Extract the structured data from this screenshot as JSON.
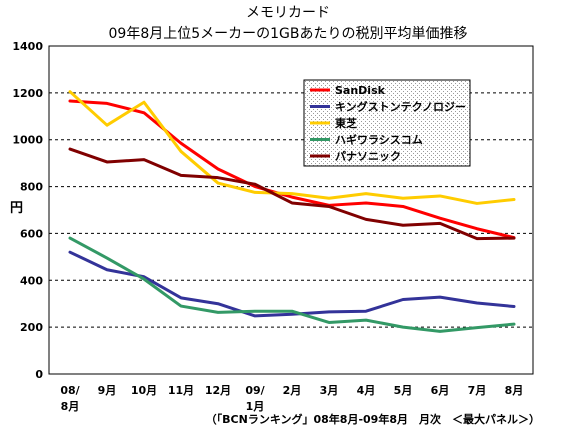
{
  "chart_data": {
    "type": "line",
    "title_line1": "メモリカード",
    "title_line2": "09年8月上位5メーカーの1GBあたりの税別平均単価推移",
    "ylabel": "円",
    "ylim": [
      0,
      1400
    ],
    "yticks": [
      0,
      200,
      400,
      600,
      800,
      1000,
      1200,
      1400
    ],
    "grid": "horizontal-dashed",
    "legend_position": "top-right",
    "categories": [
      {
        "top": "08/",
        "bottom": "8月"
      },
      {
        "top": "9月",
        "bottom": ""
      },
      {
        "top": "10月",
        "bottom": ""
      },
      {
        "top": "11月",
        "bottom": ""
      },
      {
        "top": "12月",
        "bottom": ""
      },
      {
        "top": "09/",
        "bottom": "1月"
      },
      {
        "top": "2月",
        "bottom": ""
      },
      {
        "top": "3月",
        "bottom": ""
      },
      {
        "top": "4月",
        "bottom": ""
      },
      {
        "top": "5月",
        "bottom": ""
      },
      {
        "top": "6月",
        "bottom": ""
      },
      {
        "top": "7月",
        "bottom": ""
      },
      {
        "top": "8月",
        "bottom": ""
      }
    ],
    "series": [
      {
        "name": "SanDisk",
        "color": "#ff0000",
        "values": [
          1165,
          1155,
          1115,
          985,
          875,
          800,
          755,
          720,
          730,
          715,
          665,
          620,
          582
        ]
      },
      {
        "name": "キングストンテクノロジー",
        "color": "#333399",
        "values": [
          520,
          445,
          415,
          325,
          300,
          248,
          255,
          265,
          268,
          318,
          328,
          303,
          288
        ]
      },
      {
        "name": "東芝",
        "color": "#ffcc00",
        "values": [
          1205,
          1062,
          1160,
          950,
          815,
          775,
          770,
          750,
          770,
          750,
          760,
          728,
          745
        ]
      },
      {
        "name": "ハギワラシスコム",
        "color": "#339966",
        "values": [
          580,
          495,
          405,
          290,
          263,
          268,
          268,
          220,
          230,
          200,
          182,
          198,
          213
        ]
      },
      {
        "name": "パナソニック",
        "color": "#800000",
        "values": [
          960,
          905,
          915,
          848,
          838,
          810,
          730,
          715,
          660,
          635,
          643,
          578,
          580
        ]
      }
    ],
    "source_note": "（「BCNランキング」08年8月-09年8月　月次　＜最大パネル＞）"
  }
}
